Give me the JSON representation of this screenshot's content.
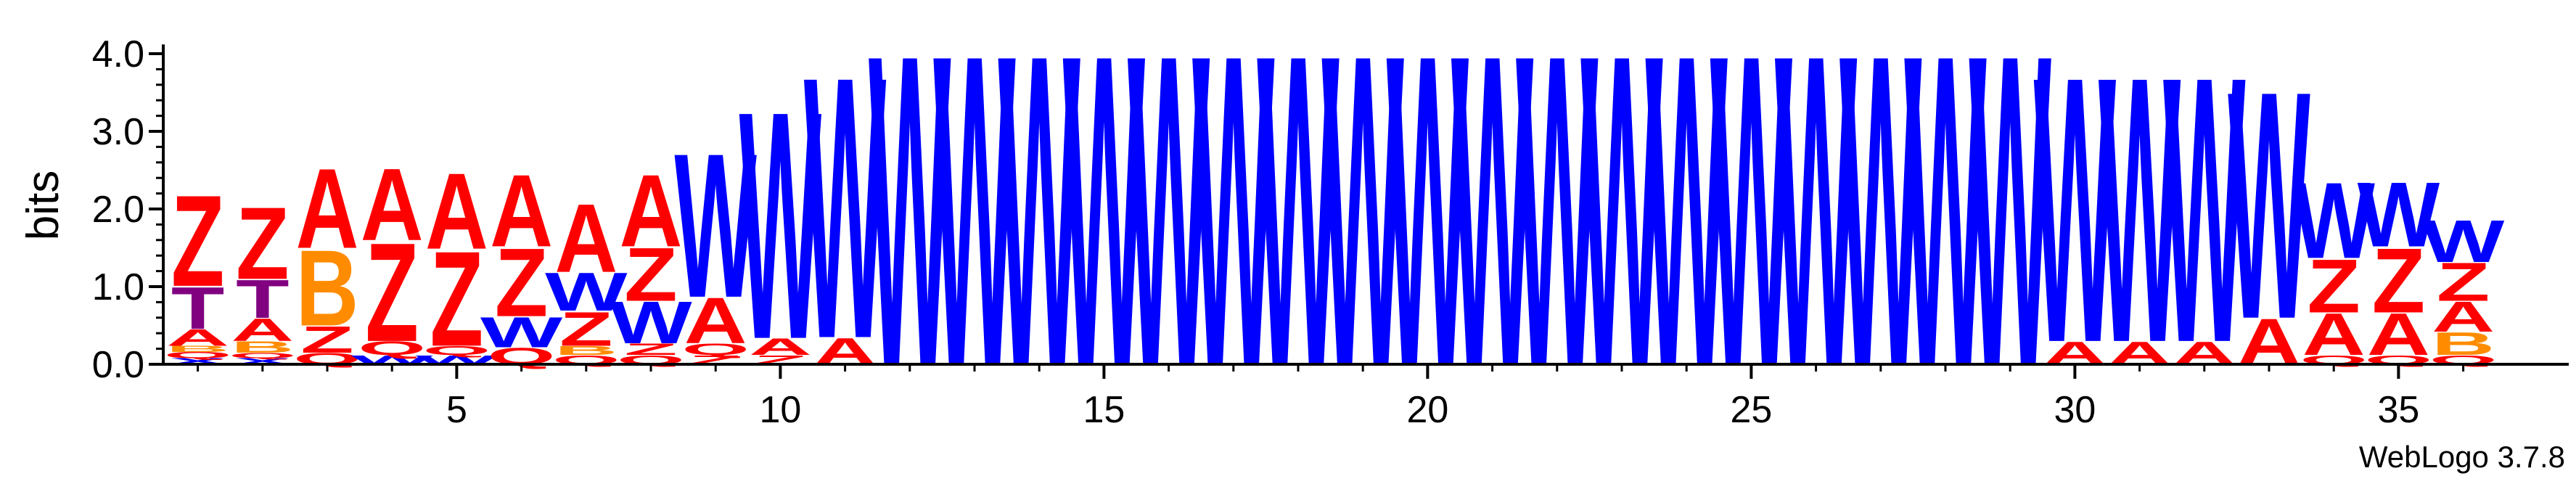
{
  "chart_data": {
    "type": "sequence-logo",
    "ylabel": "bits",
    "ylim": [
      0,
      4.1
    ],
    "yticks": [
      "0.0",
      "1.0",
      "2.0",
      "3.0",
      "4.0"
    ],
    "xticks": [
      "5",
      "10",
      "15",
      "20",
      "25",
      "30",
      "35"
    ],
    "positions": [
      1,
      36
    ],
    "footer": "WebLogo 3.7.8",
    "colors": {
      "A": "#ff0000",
      "Z": "#ff0000",
      "Q": "#ff0000",
      "W": "#0000ff",
      "X": "#0000ff",
      "B": "#ff8c00",
      "T": "#800080"
    },
    "columns": [
      {
        "pos": 1,
        "letters": [
          [
            "X",
            0.08
          ],
          [
            "Q",
            0.08
          ],
          [
            "B",
            0.08
          ],
          [
            "A",
            0.22
          ],
          [
            "T",
            0.55
          ],
          [
            "Z",
            1.2
          ]
        ]
      },
      {
        "pos": 2,
        "letters": [
          [
            "X",
            0.08
          ],
          [
            "Q",
            0.07
          ],
          [
            "B",
            0.15
          ],
          [
            "A",
            0.3
          ],
          [
            "T",
            0.5
          ],
          [
            "Z",
            0.95
          ]
        ]
      },
      {
        "pos": 3,
        "letters": [
          [
            "Q",
            0.15
          ],
          [
            "Z",
            0.35
          ],
          [
            "B",
            1.0
          ],
          [
            "A",
            1.05
          ]
        ]
      },
      {
        "pos": 4,
        "letters": [
          [
            "W",
            0.12
          ],
          [
            "Q",
            0.18
          ],
          [
            "Z",
            1.3
          ],
          [
            "A",
            0.95
          ]
        ]
      },
      {
        "pos": 5,
        "letters": [
          [
            "W",
            0.12
          ],
          [
            "Q",
            0.12
          ],
          [
            "Z",
            1.25
          ],
          [
            "A",
            1.0
          ]
        ]
      },
      {
        "pos": 6,
        "letters": [
          [
            "Q",
            0.22
          ],
          [
            "W",
            0.4
          ],
          [
            "Z",
            0.9
          ],
          [
            "A",
            0.95
          ]
        ]
      },
      {
        "pos": 7,
        "letters": [
          [
            "Q",
            0.12
          ],
          [
            "B",
            0.12
          ],
          [
            "Z",
            0.45
          ],
          [
            "W",
            0.5
          ],
          [
            "A",
            0.9
          ]
        ]
      },
      {
        "pos": 8,
        "letters": [
          [
            "Q",
            0.12
          ],
          [
            "Z",
            0.15
          ],
          [
            "W",
            0.55
          ],
          [
            "Z",
            0.7
          ],
          [
            "A",
            0.95
          ]
        ]
      },
      {
        "pos": 9,
        "letters": [
          [
            "Z",
            0.12
          ],
          [
            "Q",
            0.15
          ],
          [
            "A",
            0.6
          ],
          [
            "W",
            1.9
          ]
        ]
      },
      {
        "pos": 10,
        "letters": [
          [
            "Z",
            0.12
          ],
          [
            "A",
            0.22
          ],
          [
            "W",
            3.0
          ]
        ]
      },
      {
        "pos": 11,
        "letters": [
          [
            "A",
            0.35
          ],
          [
            "W",
            3.45
          ]
        ]
      },
      {
        "pos": 12,
        "letters": [
          [
            "W",
            4.1
          ]
        ]
      },
      {
        "pos": 13,
        "letters": [
          [
            "W",
            4.1
          ]
        ]
      },
      {
        "pos": 14,
        "letters": [
          [
            "W",
            4.1
          ]
        ]
      },
      {
        "pos": 15,
        "letters": [
          [
            "W",
            4.1
          ]
        ]
      },
      {
        "pos": 16,
        "letters": [
          [
            "W",
            4.1
          ]
        ]
      },
      {
        "pos": 17,
        "letters": [
          [
            "W",
            4.1
          ]
        ]
      },
      {
        "pos": 18,
        "letters": [
          [
            "W",
            4.1
          ]
        ]
      },
      {
        "pos": 19,
        "letters": [
          [
            "W",
            4.1
          ]
        ]
      },
      {
        "pos": 20,
        "letters": [
          [
            "W",
            4.1
          ]
        ]
      },
      {
        "pos": 21,
        "letters": [
          [
            "W",
            4.1
          ]
        ]
      },
      {
        "pos": 22,
        "letters": [
          [
            "W",
            4.1
          ]
        ]
      },
      {
        "pos": 23,
        "letters": [
          [
            "W",
            4.1
          ]
        ]
      },
      {
        "pos": 24,
        "letters": [
          [
            "W",
            4.1
          ]
        ]
      },
      {
        "pos": 25,
        "letters": [
          [
            "W",
            4.1
          ]
        ]
      },
      {
        "pos": 26,
        "letters": [
          [
            "W",
            4.1
          ]
        ]
      },
      {
        "pos": 27,
        "letters": [
          [
            "W",
            4.1
          ]
        ]
      },
      {
        "pos": 28,
        "letters": [
          [
            "W",
            4.1
          ]
        ]
      },
      {
        "pos": 29,
        "letters": [
          [
            "W",
            4.1
          ]
        ]
      },
      {
        "pos": 30,
        "letters": [
          [
            "A",
            0.3
          ],
          [
            "W",
            3.5
          ]
        ]
      },
      {
        "pos": 31,
        "letters": [
          [
            "A",
            0.3
          ],
          [
            "W",
            3.5
          ]
        ]
      },
      {
        "pos": 32,
        "letters": [
          [
            "A",
            0.3
          ],
          [
            "W",
            3.5
          ]
        ]
      },
      {
        "pos": 33,
        "letters": [
          [
            "A",
            0.6
          ],
          [
            "W",
            3.0
          ]
        ]
      },
      {
        "pos": 34,
        "letters": [
          [
            "Q",
            0.12
          ],
          [
            "A",
            0.55
          ],
          [
            "Z",
            0.7
          ],
          [
            "W",
            1.0
          ]
        ]
      },
      {
        "pos": 35,
        "letters": [
          [
            "Q",
            0.12
          ],
          [
            "A",
            0.55
          ],
          [
            "Z",
            0.85
          ],
          [
            "W",
            0.85
          ]
        ]
      },
      {
        "pos": 36,
        "letters": [
          [
            "Q",
            0.12
          ],
          [
            "B",
            0.3
          ],
          [
            "A",
            0.4
          ],
          [
            "Z",
            0.5
          ],
          [
            "W",
            0.55
          ]
        ]
      }
    ]
  }
}
